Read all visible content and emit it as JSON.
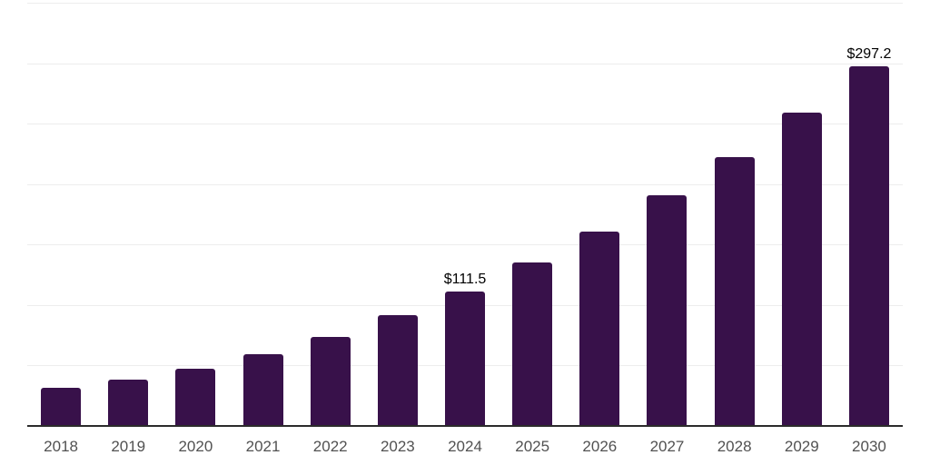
{
  "chart_data": {
    "type": "bar",
    "title": "",
    "xlabel": "",
    "ylabel": "",
    "categories": [
      "2018",
      "2019",
      "2020",
      "2021",
      "2022",
      "2023",
      "2024",
      "2025",
      "2026",
      "2027",
      "2028",
      "2029",
      "2030"
    ],
    "values": [
      31.2,
      38.3,
      47.4,
      59.4,
      73.8,
      91.4,
      111.5,
      134.9,
      160.5,
      190.6,
      222.5,
      259.1,
      297.2
    ],
    "data_labels": {
      "2024": "$111.5",
      "2030": "$297.2"
    },
    "value_prefix": "$",
    "ylim": [
      0,
      350
    ],
    "gridline_interval": 50,
    "grid": "horizontal-only",
    "legend": "none",
    "y_tick_labels_visible": false,
    "colors": {
      "bar": "#38114A",
      "axis_line": "#2b2b2b",
      "gridline": "#ededed",
      "tick_label": "#515151",
      "data_label": "#000000",
      "background": "#ffffff"
    }
  }
}
